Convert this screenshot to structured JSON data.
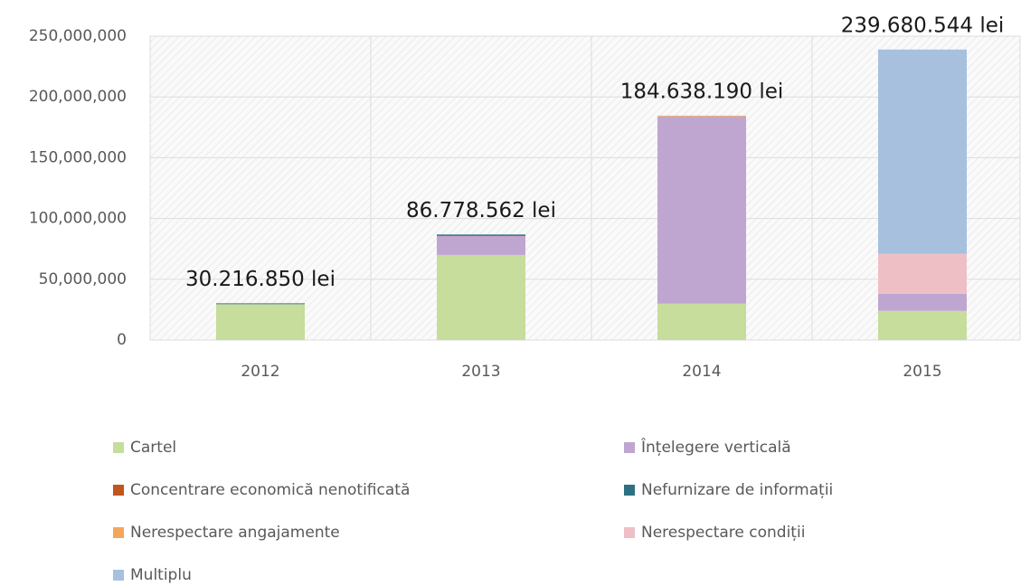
{
  "chart_data": {
    "type": "stacked_bar",
    "categories": [
      "2012",
      "2013",
      "2014",
      "2015"
    ],
    "series": [
      {
        "name": "Cartel",
        "color": "#c6dd9b",
        "values": [
          29500000,
          70000000,
          30000000,
          24000000
        ]
      },
      {
        "name": "Înțelegere verticală",
        "color": "#bfa6d1",
        "values": [
          0,
          15500000,
          154000000,
          14000000
        ]
      },
      {
        "name": "Concentrare economică nenotificată",
        "color": "#c0561e",
        "values": [
          0,
          800000,
          0,
          0
        ]
      },
      {
        "name": "Nefurnizare de informații",
        "color": "#2e7082",
        "values": [
          700000,
          500000,
          0,
          0
        ]
      },
      {
        "name": "Nerespectare angajamente",
        "color": "#f5a65b",
        "values": [
          0,
          0,
          600000,
          0
        ]
      },
      {
        "name": "Nerespectare condiții",
        "color": "#eebfc5",
        "values": [
          0,
          0,
          0,
          33000000
        ]
      },
      {
        "name": "Multiplu",
        "color": "#a7c0de",
        "values": [
          0,
          0,
          0,
          168000000
        ]
      }
    ],
    "annotations": [
      "30.216.850 lei",
      "86.778.562 lei",
      "184.638.190 lei",
      "239.680.544 lei"
    ],
    "ylim": [
      0,
      250000000
    ],
    "yticks": [
      0,
      {
        "value": 50000000,
        "label": "50,000,000"
      },
      {
        "value": 100000000,
        "label": "100,000,000"
      },
      {
        "value": 150000000,
        "label": "150,000,000"
      },
      {
        "value": 200000000,
        "label": "200,000,000"
      },
      {
        "value": 250000000,
        "label": "250,000,000"
      }
    ],
    "grid": true
  }
}
